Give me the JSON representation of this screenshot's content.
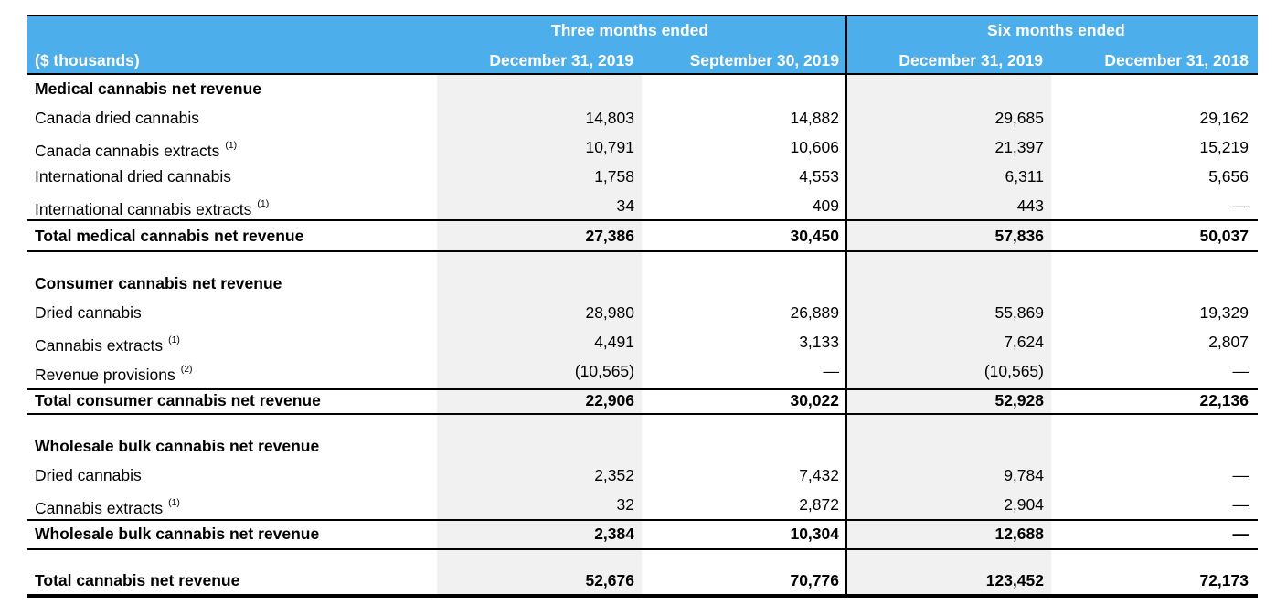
{
  "header": {
    "group_three": "Three months ended",
    "group_six": "Six months ended",
    "units": "($ thousands)",
    "columns": [
      "December 31, 2019",
      "September 30, 2019",
      "December 31, 2019",
      "December 31, 2018"
    ]
  },
  "rows": [
    {
      "label": "Medical cannabis net revenue",
      "type": "section"
    },
    {
      "label": "Canada dried cannabis",
      "values": [
        "14,803",
        "14,882",
        "29,685",
        "29,162"
      ]
    },
    {
      "label": "Canada cannabis extracts",
      "note": "(1)",
      "values": [
        "10,791",
        "10,606",
        "21,397",
        "15,219"
      ]
    },
    {
      "label": "International dried cannabis",
      "values": [
        "1,758",
        "4,553",
        "6,311",
        "5,656"
      ]
    },
    {
      "label": "International cannabis extracts",
      "note": "(1)",
      "values": [
        "34",
        "409",
        "443",
        "—"
      ]
    },
    {
      "label": "Total medical cannabis net revenue",
      "type": "total",
      "values": [
        "27,386",
        "30,450",
        "57,836",
        "50,037"
      ]
    },
    {
      "label": "Consumer cannabis net revenue",
      "type": "section"
    },
    {
      "label": "Dried cannabis",
      "values": [
        "28,980",
        "26,889",
        "55,869",
        "19,329"
      ]
    },
    {
      "label": "Cannabis extracts",
      "note": "(1)",
      "values": [
        "4,491",
        "3,133",
        "7,624",
        "2,807"
      ]
    },
    {
      "label": "Revenue provisions",
      "note": "(2)",
      "values": [
        "(10,565)",
        "—",
        "(10,565)",
        "—"
      ]
    },
    {
      "label": "Total consumer cannabis net revenue",
      "type": "total",
      "values": [
        "22,906",
        "30,022",
        "52,928",
        "22,136"
      ]
    },
    {
      "label": "Wholesale bulk cannabis net revenue",
      "type": "section"
    },
    {
      "label": "Dried cannabis",
      "values": [
        "2,352",
        "7,432",
        "9,784",
        "—"
      ]
    },
    {
      "label": "Cannabis extracts",
      "note": "(1)",
      "values": [
        "32",
        "2,872",
        "2,904",
        "—"
      ]
    },
    {
      "label": "Wholesale bulk cannabis net revenue",
      "type": "total",
      "values": [
        "2,384",
        "10,304",
        "12,688",
        "—"
      ]
    },
    {
      "label": "Total cannabis net revenue",
      "type": "grand",
      "values": [
        "52,676",
        "70,776",
        "123,452",
        "72,173"
      ]
    }
  ]
}
